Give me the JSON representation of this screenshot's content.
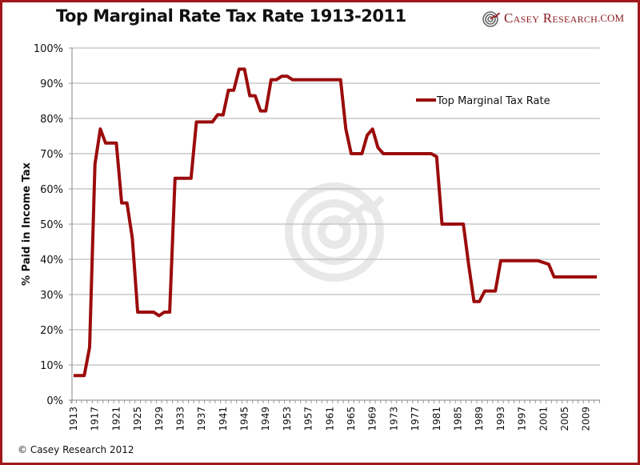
{
  "header": {
    "title": "Top Marginal Rate Tax Rate 1913-2011",
    "brand_part1": "Casey Research",
    "brand_part2": ".com",
    "brand_icon": "target-logo-icon"
  },
  "footer": {
    "copyright": "© Casey Research 2012"
  },
  "colors": {
    "line": "#9b0c0c",
    "frame": "#a0181c",
    "grid": "#bdbdbd"
  },
  "chart_data": {
    "type": "line",
    "title": "Top Marginal Rate Tax Rate 1913-2011",
    "xlabel": "",
    "ylabel": "% Paid in Income Tax",
    "ylim": [
      0,
      100
    ],
    "xlim": [
      1913,
      2011
    ],
    "grid": true,
    "legend": {
      "position": "top-right",
      "entries": [
        "Top Marginal Tax Rate"
      ]
    },
    "yticks": [
      "0%",
      "10%",
      "20%",
      "30%",
      "40%",
      "50%",
      "60%",
      "70%",
      "80%",
      "90%",
      "100%"
    ],
    "xticks": [
      "1913",
      "1917",
      "1921",
      "1925",
      "1929",
      "1933",
      "1937",
      "1941",
      "1945",
      "1949",
      "1953",
      "1957",
      "1961",
      "1965",
      "1969",
      "1973",
      "1977",
      "1981",
      "1985",
      "1989",
      "1993",
      "1997",
      "2001",
      "2005",
      "2009"
    ],
    "series": [
      {
        "name": "Top Marginal Tax Rate",
        "x": [
          1913,
          1914,
          1915,
          1916,
          1917,
          1918,
          1919,
          1920,
          1921,
          1922,
          1923,
          1924,
          1925,
          1926,
          1927,
          1928,
          1929,
          1930,
          1931,
          1932,
          1933,
          1934,
          1935,
          1936,
          1937,
          1938,
          1939,
          1940,
          1941,
          1942,
          1943,
          1944,
          1945,
          1946,
          1947,
          1948,
          1949,
          1950,
          1951,
          1952,
          1953,
          1954,
          1955,
          1956,
          1957,
          1958,
          1959,
          1960,
          1961,
          1962,
          1963,
          1964,
          1965,
          1966,
          1967,
          1968,
          1969,
          1970,
          1971,
          1972,
          1973,
          1974,
          1975,
          1976,
          1977,
          1978,
          1979,
          1980,
          1981,
          1982,
          1983,
          1984,
          1985,
          1986,
          1987,
          1988,
          1989,
          1990,
          1991,
          1992,
          1993,
          1994,
          1995,
          1996,
          1997,
          1998,
          1999,
          2000,
          2001,
          2002,
          2003,
          2004,
          2005,
          2006,
          2007,
          2008,
          2009,
          2010,
          2011
        ],
        "values": [
          7,
          7,
          7,
          15,
          67,
          77,
          73,
          73,
          73,
          56,
          56,
          46,
          25,
          25,
          25,
          25,
          24,
          25,
          25,
          63,
          63,
          63,
          63,
          79,
          79,
          79,
          79,
          81.1,
          81,
          88,
          88,
          94,
          94,
          86.45,
          86.45,
          82.13,
          82.13,
          91,
          91,
          92,
          92,
          91,
          91,
          91,
          91,
          91,
          91,
          91,
          91,
          91,
          91,
          77,
          70,
          70,
          70,
          75.25,
          77,
          71.75,
          70,
          70,
          70,
          70,
          70,
          70,
          70,
          70,
          70,
          70,
          69.13,
          50,
          50,
          50,
          50,
          50,
          38.5,
          28,
          28,
          31,
          31,
          31,
          39.6,
          39.6,
          39.6,
          39.6,
          39.6,
          39.6,
          39.6,
          39.6,
          39.1,
          38.6,
          35,
          35,
          35,
          35,
          35,
          35,
          35,
          35,
          35
        ]
      }
    ]
  }
}
